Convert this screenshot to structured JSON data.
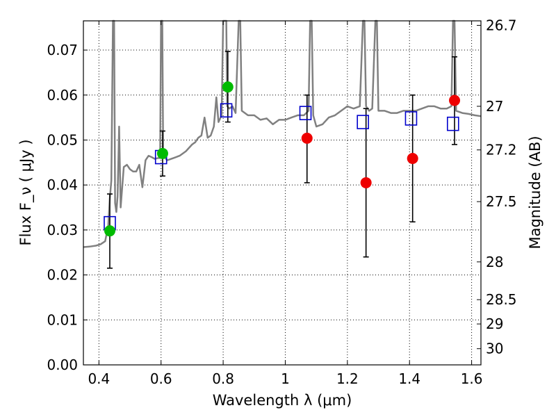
{
  "chart_data": {
    "type": "scatter",
    "xlabel": "Wavelength  λ (μm)",
    "ylabel": "Flux  F_ν  ( μJy )",
    "ylabel_right": "Magnitude (AB)",
    "xlim": [
      0.35,
      1.63
    ],
    "ylim": [
      0.0,
      0.0765
    ],
    "x_ticks": [
      0.4,
      0.6,
      0.8,
      1.0,
      1.2,
      1.4,
      1.6
    ],
    "x_tick_labels": [
      "0.4",
      "0.6",
      "0.8",
      "1",
      "1.2",
      "1.4",
      "1.6"
    ],
    "y_ticks": [
      0.0,
      0.01,
      0.02,
      0.03,
      0.04,
      0.05,
      0.06,
      0.07
    ],
    "y_tick_labels": [
      "0.00",
      "0.01",
      "0.02",
      "0.03",
      "0.04",
      "0.05",
      "0.06",
      "0.07"
    ],
    "right_ticks": [
      {
        "label": "26.7",
        "flux": 0.0755
      },
      {
        "label": "27",
        "flux": 0.0575
      },
      {
        "label": "27.2",
        "flux": 0.0478
      },
      {
        "label": "27.5",
        "flux": 0.0363
      },
      {
        "label": "28",
        "flux": 0.0229
      },
      {
        "label": "28.5",
        "flux": 0.0145
      },
      {
        "label": "29",
        "flux": 0.0091
      },
      {
        "label": "30",
        "flux": 0.0036
      }
    ],
    "grid": true,
    "colors": {
      "model": "#808080",
      "detection": "#00bb00",
      "upper": "#ee0000",
      "model_band": "#0000cc",
      "errorbar": "#000000"
    },
    "series": [
      {
        "kind": "model-spectrum",
        "points": [
          [
            0.35,
            0.0262
          ],
          [
            0.37,
            0.0263
          ],
          [
            0.39,
            0.0265
          ],
          [
            0.405,
            0.0268
          ],
          [
            0.42,
            0.0275
          ],
          [
            0.43,
            0.031
          ],
          [
            0.435,
            0.037
          ],
          [
            0.44,
            0.041
          ],
          [
            0.445,
            0.0765
          ],
          [
            0.449,
            0.0765
          ],
          [
            0.452,
            0.036
          ],
          [
            0.456,
            0.034
          ],
          [
            0.46,
            0.0375
          ],
          [
            0.465,
            0.053
          ],
          [
            0.47,
            0.035
          ],
          [
            0.48,
            0.044
          ],
          [
            0.49,
            0.0445
          ],
          [
            0.5,
            0.0435
          ],
          [
            0.51,
            0.043
          ],
          [
            0.52,
            0.043
          ],
          [
            0.53,
            0.0445
          ],
          [
            0.54,
            0.0395
          ],
          [
            0.55,
            0.0455
          ],
          [
            0.56,
            0.0465
          ],
          [
            0.57,
            0.0462
          ],
          [
            0.58,
            0.0458
          ],
          [
            0.59,
            0.046
          ],
          [
            0.597,
            0.046
          ],
          [
            0.6,
            0.0765
          ],
          [
            0.604,
            0.0765
          ],
          [
            0.607,
            0.0465
          ],
          [
            0.62,
            0.0455
          ],
          [
            0.64,
            0.046
          ],
          [
            0.66,
            0.0465
          ],
          [
            0.68,
            0.0475
          ],
          [
            0.7,
            0.049
          ],
          [
            0.71,
            0.0495
          ],
          [
            0.72,
            0.0505
          ],
          [
            0.73,
            0.051
          ],
          [
            0.74,
            0.055
          ],
          [
            0.75,
            0.0505
          ],
          [
            0.76,
            0.051
          ],
          [
            0.77,
            0.053
          ],
          [
            0.778,
            0.0595
          ],
          [
            0.785,
            0.054
          ],
          [
            0.795,
            0.0555
          ],
          [
            0.8,
            0.0765
          ],
          [
            0.805,
            0.0765
          ],
          [
            0.81,
            0.0765
          ],
          [
            0.813,
            0.0575
          ],
          [
            0.82,
            0.057
          ],
          [
            0.83,
            0.0575
          ],
          [
            0.84,
            0.056
          ],
          [
            0.85,
            0.0765
          ],
          [
            0.855,
            0.0765
          ],
          [
            0.86,
            0.0565
          ],
          [
            0.88,
            0.0555
          ],
          [
            0.9,
            0.0555
          ],
          [
            0.92,
            0.0545
          ],
          [
            0.94,
            0.0548
          ],
          [
            0.96,
            0.0535
          ],
          [
            0.98,
            0.0545
          ],
          [
            1.0,
            0.0545
          ],
          [
            1.02,
            0.055
          ],
          [
            1.04,
            0.0555
          ],
          [
            1.06,
            0.0555
          ],
          [
            1.075,
            0.0565
          ],
          [
            1.08,
            0.0765
          ],
          [
            1.085,
            0.0765
          ],
          [
            1.09,
            0.0555
          ],
          [
            1.1,
            0.053
          ],
          [
            1.12,
            0.0535
          ],
          [
            1.14,
            0.055
          ],
          [
            1.16,
            0.0555
          ],
          [
            1.18,
            0.0565
          ],
          [
            1.2,
            0.0575
          ],
          [
            1.22,
            0.057
          ],
          [
            1.24,
            0.0575
          ],
          [
            1.25,
            0.0765
          ],
          [
            1.255,
            0.0765
          ],
          [
            1.26,
            0.0575
          ],
          [
            1.27,
            0.0565
          ],
          [
            1.28,
            0.057
          ],
          [
            1.29,
            0.0765
          ],
          [
            1.295,
            0.0765
          ],
          [
            1.3,
            0.0565
          ],
          [
            1.32,
            0.0565
          ],
          [
            1.34,
            0.056
          ],
          [
            1.36,
            0.056
          ],
          [
            1.38,
            0.0565
          ],
          [
            1.4,
            0.0565
          ],
          [
            1.42,
            0.0565
          ],
          [
            1.44,
            0.057
          ],
          [
            1.46,
            0.0575
          ],
          [
            1.48,
            0.0575
          ],
          [
            1.5,
            0.057
          ],
          [
            1.52,
            0.057
          ],
          [
            1.535,
            0.0575
          ],
          [
            1.54,
            0.0765
          ],
          [
            1.545,
            0.0765
          ],
          [
            1.55,
            0.0565
          ],
          [
            1.57,
            0.056
          ],
          [
            1.59,
            0.0558
          ],
          [
            1.61,
            0.0555
          ],
          [
            1.63,
            0.0553
          ]
        ]
      },
      {
        "kind": "model-bands",
        "points": [
          [
            0.435,
            0.0315
          ],
          [
            0.6,
            0.0462
          ],
          [
            0.81,
            0.0566
          ],
          [
            1.065,
            0.056
          ],
          [
            1.25,
            0.054
          ],
          [
            1.405,
            0.0548
          ],
          [
            1.54,
            0.0536
          ]
        ]
      },
      {
        "kind": "detections",
        "points": [
          {
            "x": 0.435,
            "y": 0.0298,
            "lo": 0.0215,
            "hi": 0.038
          },
          {
            "x": 0.605,
            "y": 0.047,
            "lo": 0.042,
            "hi": 0.052
          },
          {
            "x": 0.815,
            "y": 0.0618,
            "lo": 0.054,
            "hi": 0.0697
          }
        ]
      },
      {
        "kind": "upper",
        "points": [
          {
            "x": 1.07,
            "y": 0.0504,
            "lo": 0.0405,
            "hi": 0.06
          },
          {
            "x": 1.26,
            "y": 0.0405,
            "lo": 0.024,
            "hi": 0.057
          },
          {
            "x": 1.41,
            "y": 0.0459,
            "lo": 0.0318,
            "hi": 0.06
          },
          {
            "x": 1.545,
            "y": 0.0588,
            "lo": 0.049,
            "hi": 0.0685
          }
        ]
      }
    ]
  }
}
